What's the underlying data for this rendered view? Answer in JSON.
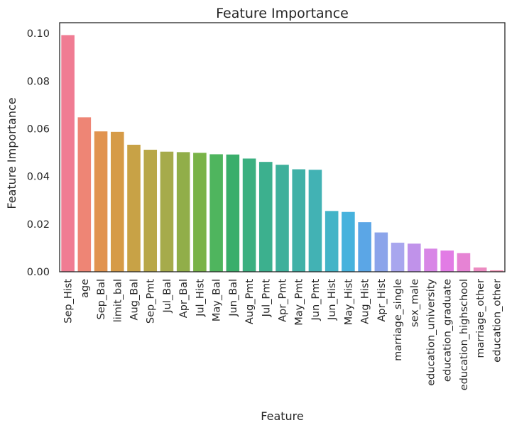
{
  "chart_data": {
    "type": "bar",
    "title": "Feature Importance",
    "xlabel": "Feature",
    "ylabel": "Feature Importance",
    "ylim": [
      0,
      0.1045
    ],
    "yticks": [
      "0.00",
      "0.02",
      "0.04",
      "0.06",
      "0.08",
      "0.10"
    ],
    "ytick_values": [
      0,
      0.02,
      0.04,
      0.06,
      0.08,
      0.1
    ],
    "grid": false,
    "categories": [
      "Sep_Hist",
      "age",
      "Sep_Bal",
      "limit_bal",
      "Aug_Bal",
      "Sep_Pmt",
      "Jul_Bal",
      "Apr_Bal",
      "Jul_Hist",
      "May_Bal",
      "Jun_Bal",
      "Aug_Pmt",
      "Jul_Pmt",
      "Apr_Pmt",
      "May_Pmt",
      "Jun_Pmt",
      "Jun_Hist",
      "May_Hist",
      "Aug_Hist",
      "Apr_Hist",
      "marriage_single",
      "sex_male",
      "education_university",
      "education_graduate",
      "education_highschool",
      "marriage_other",
      "education_other"
    ],
    "values": [
      0.0993,
      0.0648,
      0.0589,
      0.0587,
      0.0533,
      0.0512,
      0.0504,
      0.0502,
      0.0499,
      0.0493,
      0.0492,
      0.0475,
      0.0461,
      0.0449,
      0.043,
      0.0428,
      0.0255,
      0.0251,
      0.0208,
      0.0165,
      0.0122,
      0.0118,
      0.0097,
      0.0089,
      0.0078,
      0.0018,
      0.0006
    ],
    "colors": [
      "#f07c93",
      "#ee8575",
      "#e1934f",
      "#d69b47",
      "#c8a246",
      "#b8a748",
      "#a6ab4b",
      "#91ae49",
      "#79b347",
      "#4fb55e",
      "#3aae6b",
      "#3bb080",
      "#3cb08e",
      "#3eb09b",
      "#40b1a7",
      "#42b2b4",
      "#43b4c7",
      "#46b2dd",
      "#5ba6e6",
      "#8ba4ea",
      "#a8a6ee",
      "#c092ea",
      "#d886e6",
      "#e27ce5",
      "#e683d4",
      "#ec8bc1",
      "#f28db2"
    ]
  }
}
